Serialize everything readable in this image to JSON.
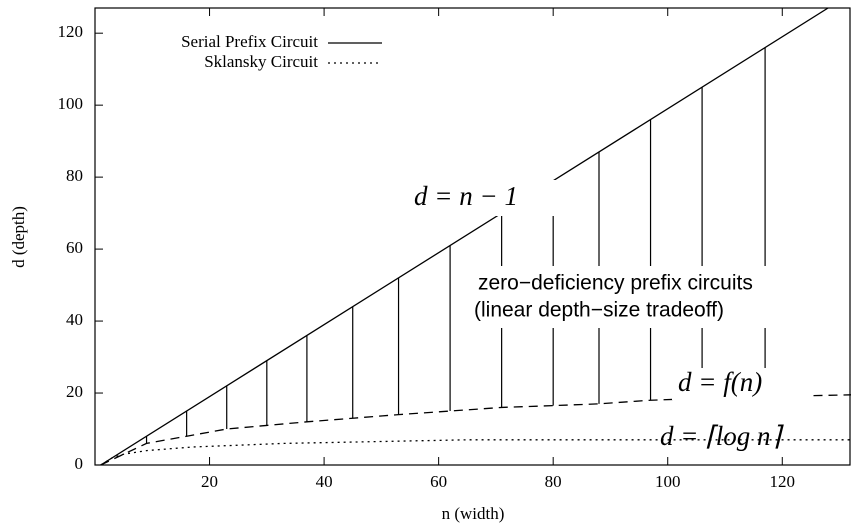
{
  "chart_data": {
    "type": "line",
    "xlabel": "n (width)",
    "ylabel": "d (depth)",
    "xlim": [
      0,
      132
    ],
    "ylim": [
      0,
      127
    ],
    "xticks": [
      20,
      40,
      60,
      80,
      100,
      120
    ],
    "yticks": [
      0,
      20,
      40,
      60,
      80,
      100,
      120
    ],
    "legend": "upper left",
    "series": [
      {
        "name": "Serial Prefix Circuit",
        "style": "solid",
        "color": "#000000",
        "x": [
          1,
          128
        ],
        "values": [
          0,
          127
        ]
      },
      {
        "name": "Sklansky Circuit",
        "style": "dotted",
        "color": "#000000",
        "x": [
          1,
          2,
          2,
          3,
          3,
          5,
          5,
          9,
          9,
          17,
          17,
          33,
          33,
          65,
          65,
          132
        ],
        "values": [
          0,
          1,
          1,
          2,
          2,
          3,
          3,
          4,
          4,
          5,
          5,
          6,
          6,
          7,
          7,
          7
        ]
      },
      {
        "name": null,
        "style": "dashed",
        "color": "#000000",
        "x": [
          1,
          9,
          16,
          23,
          30,
          37,
          45,
          53,
          62,
          71,
          80,
          88,
          97,
          106,
          117,
          132
        ],
        "values": [
          0,
          6,
          8,
          10,
          11,
          12,
          13,
          14,
          15,
          16,
          16.5,
          17,
          18,
          18.5,
          19,
          19.5
        ]
      }
    ],
    "verticals": {
      "x": [
        9,
        16,
        23,
        30,
        37,
        45,
        53,
        62,
        71,
        80,
        88,
        97,
        106,
        117
      ],
      "top": [
        8,
        15,
        22,
        29,
        36,
        44,
        52,
        61,
        70,
        79,
        87,
        96,
        105,
        116
      ],
      "bottom": [
        6,
        8,
        10,
        11,
        12,
        13,
        14,
        15,
        16,
        16.5,
        17,
        18,
        18.5,
        19
      ]
    },
    "annotations": [
      "d = n − 1",
      "zero−deficiency prefix circuits",
      "(linear depth−size tradeoff)",
      "d = f(n)",
      "d = ⌈log n⌉"
    ]
  }
}
